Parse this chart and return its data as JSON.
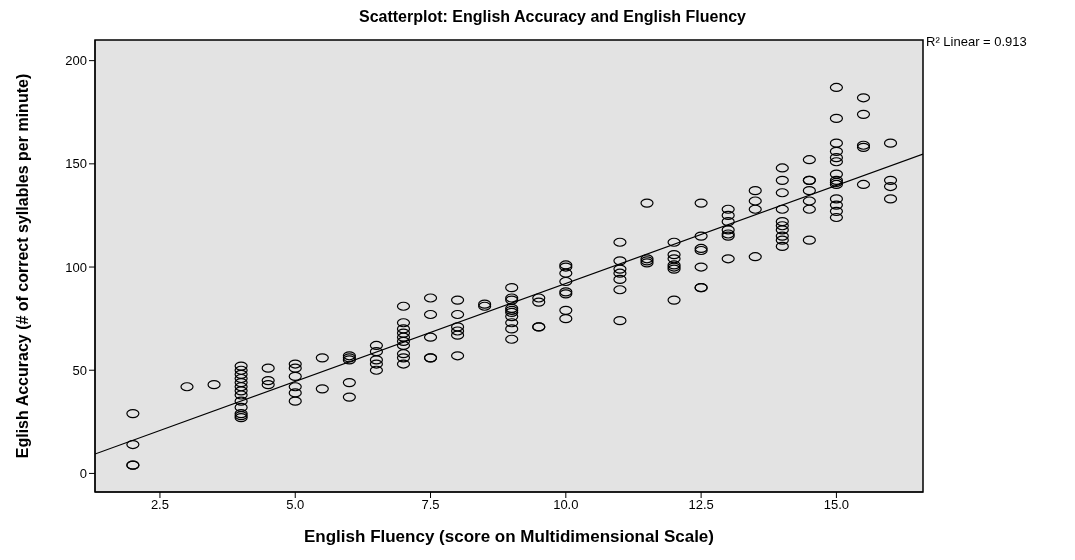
{
  "chart_data": {
    "type": "scatter",
    "title": "Scatterplot:  English Accuracy and English Fluency",
    "xlabel": "English Fluency (score on Multidimensional Scale)",
    "ylabel": "Eglish Accuracy (# of correct syllables per minute)",
    "annotations": [
      "R² Linear = 0.913"
    ],
    "xlim": [
      1.3,
      16.6
    ],
    "xticks": [
      {
        "value": 2.5,
        "label": "2.5"
      },
      {
        "value": 5,
        "label": "5.0"
      },
      {
        "value": 7.5,
        "label": "7.5"
      },
      {
        "value": 10,
        "label": "10.0"
      },
      {
        "value": 12.5,
        "label": "12.5"
      },
      {
        "value": 15,
        "label": "15.0"
      }
    ],
    "ylim": [
      -9,
      210
    ],
    "yticks": [
      0,
      50,
      100,
      150,
      200
    ],
    "grid": false,
    "legend": false,
    "series": [
      {
        "color": "#000000",
        "marker": "circle",
        "x": [
          2,
          2,
          2,
          2,
          3,
          3.5,
          4,
          4,
          4,
          4,
          4,
          4,
          4,
          4,
          4,
          4,
          4,
          4,
          4,
          4.5,
          4.5,
          4.5,
          5,
          5,
          5,
          5,
          5,
          5,
          5.5,
          5.5,
          6,
          6,
          6,
          6,
          6,
          6.5,
          6.5,
          6.5,
          6.5,
          6.5,
          7,
          7,
          7,
          7,
          7,
          7,
          7,
          7,
          7,
          7,
          7.5,
          7.5,
          7.5,
          7.5,
          7.5,
          8,
          8,
          8,
          8,
          8,
          8,
          8.5,
          8.5,
          9,
          9,
          9,
          9,
          9,
          9,
          9,
          9,
          9,
          9,
          9.5,
          9.5,
          9.5,
          9.5,
          10,
          10,
          10,
          10,
          10,
          10,
          10,
          10,
          11,
          11,
          11,
          11,
          11,
          11,
          11,
          11.5,
          11.5,
          11.5,
          11.5,
          12,
          12,
          12,
          12,
          12,
          12,
          12,
          12.5,
          12.5,
          12.5,
          12.5,
          12.5,
          12.5,
          12.5,
          13,
          13,
          13,
          13,
          13,
          13,
          13,
          13.5,
          13.5,
          13.5,
          13.5,
          14,
          14,
          14,
          14,
          14,
          14,
          14,
          14,
          14,
          14,
          14.5,
          14.5,
          14.5,
          14.5,
          14.5,
          14.5,
          14.5,
          15,
          15,
          15,
          15,
          15,
          15,
          15,
          15,
          15,
          15,
          15,
          15,
          15,
          15,
          15.5,
          15.5,
          15.5,
          15.5,
          15.5,
          16,
          16,
          16,
          16
        ],
        "values": [
          29,
          14,
          4,
          4,
          42,
          43,
          52,
          50,
          48,
          46,
          44,
          42,
          40,
          38,
          35,
          32,
          29,
          27,
          28,
          51,
          45,
          43,
          53,
          51,
          47,
          42,
          39,
          35,
          56,
          41,
          57,
          56,
          55,
          44,
          37,
          62,
          59,
          55,
          53,
          50,
          81,
          73,
          70,
          68,
          66,
          64,
          62,
          58,
          56,
          53,
          85,
          77,
          66,
          56,
          56,
          84,
          77,
          71,
          69,
          67,
          57,
          82,
          81,
          90,
          85,
          84,
          80,
          79,
          78,
          76,
          73,
          70,
          65,
          85,
          83,
          71,
          71,
          101,
          100,
          97,
          93,
          88,
          87,
          79,
          75,
          112,
          103,
          99,
          97,
          94,
          89,
          74,
          131,
          104,
          103,
          102,
          112,
          106,
          104,
          101,
          100,
          99,
          84,
          131,
          115,
          109,
          108,
          100,
          90,
          90,
          128,
          125,
          122,
          118,
          116,
          115,
          104,
          137,
          132,
          128,
          105,
          148,
          142,
          136,
          128,
          122,
          120,
          118,
          115,
          113,
          110,
          152,
          142,
          142,
          137,
          132,
          128,
          113,
          187,
          172,
          160,
          156,
          153,
          151,
          145,
          142,
          141,
          140,
          133,
          130,
          127,
          124,
          182,
          174,
          159,
          158,
          140,
          160,
          142,
          139,
          133
        ]
      },
      {
        "type": "line",
        "color": "#000000",
        "marker": "none",
        "x": [
          1.3,
          16.6
        ],
        "values": [
          9.4,
          154.7
        ]
      }
    ]
  }
}
